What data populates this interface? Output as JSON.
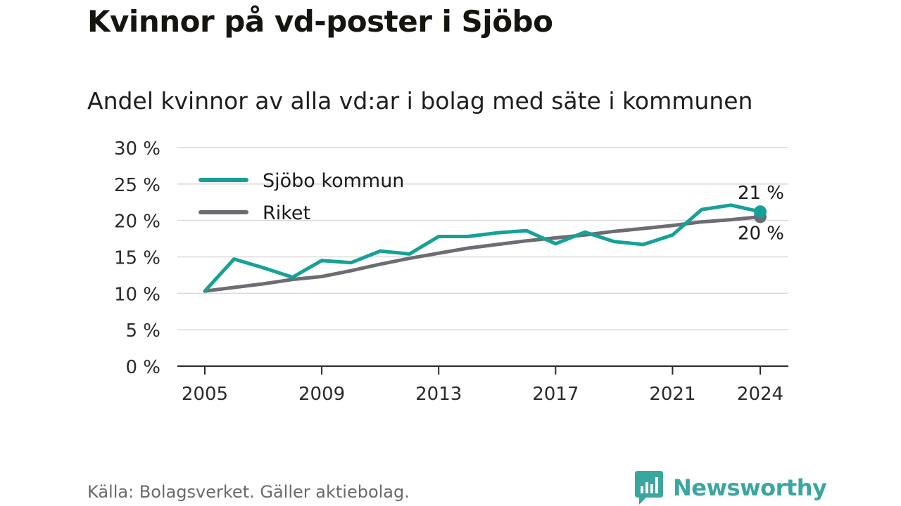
{
  "header": {
    "title": "Kvinnor på vd-poster i Sjöbo",
    "subtitle": "Andel kvinnor av alla vd:ar i bolag med säte i kommunen"
  },
  "footer": {
    "source": "Källa: Bolagsverket. Gäller aktiebolag.",
    "brand": "Newsworthy",
    "brand_icon": "newsworthy-logo-icon"
  },
  "chart_data": {
    "type": "line",
    "title": "",
    "xlabel": "",
    "ylabel": "",
    "x": [
      2005,
      2006,
      2007,
      2008,
      2009,
      2010,
      2011,
      2012,
      2013,
      2014,
      2015,
      2016,
      2017,
      2018,
      2019,
      2020,
      2021,
      2022,
      2023,
      2024
    ],
    "series": [
      {
        "name": "Sjöbo kommun",
        "color": "#15a197",
        "values": [
          10.3,
          14.7,
          13.5,
          12.2,
          14.5,
          14.2,
          15.8,
          15.4,
          17.8,
          17.8,
          18.3,
          18.6,
          16.8,
          18.4,
          17.1,
          16.7,
          18.0,
          21.5,
          22.1,
          21.2
        ],
        "end_label": "21 %"
      },
      {
        "name": "Riket",
        "color": "#6c6c72",
        "values": [
          10.3,
          10.8,
          11.3,
          11.9,
          12.3,
          13.1,
          14.0,
          14.8,
          15.5,
          16.2,
          16.7,
          17.2,
          17.6,
          18.0,
          18.5,
          18.9,
          19.3,
          19.8,
          20.1,
          20.5
        ],
        "end_label": "20 %"
      }
    ],
    "xticks": [
      2005,
      2009,
      2013,
      2017,
      2021,
      2024
    ],
    "yticks": [
      {
        "value": 0,
        "label": "0 %"
      },
      {
        "value": 5,
        "label": "5 %"
      },
      {
        "value": 10,
        "label": "10 %"
      },
      {
        "value": 15,
        "label": "15 %"
      },
      {
        "value": 20,
        "label": "20 %"
      },
      {
        "value": 25,
        "label": "25 %"
      },
      {
        "value": 30,
        "label": "30 %"
      }
    ],
    "xlim": [
      2005,
      2024
    ],
    "ylim": [
      0,
      30
    ],
    "grid": true,
    "legend_position": "top-left"
  }
}
